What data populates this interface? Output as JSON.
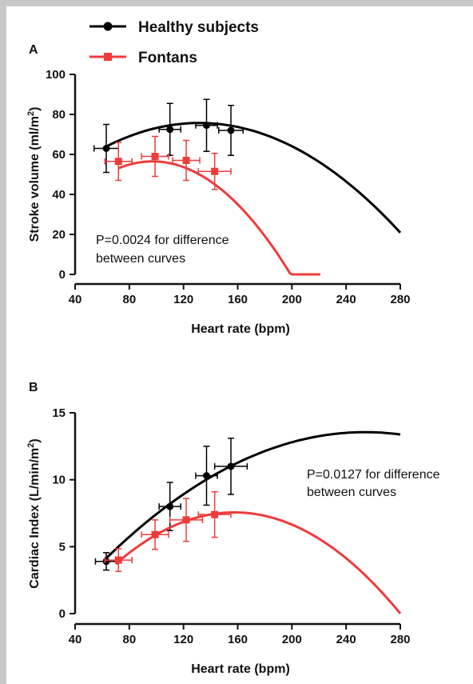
{
  "legend": {
    "items": [
      {
        "label": "Healthy subjects",
        "color": "#000000",
        "marker": "circle"
      },
      {
        "label": "Fontans",
        "color": "#ee3b3b",
        "marker": "square"
      }
    ]
  },
  "chart_data": [
    {
      "type": "line",
      "panel_label": "A",
      "xlabel": "Heart rate (bpm)",
      "ylabel_main": "Stroke volume (ml/m",
      "ylabel_sup": "2",
      "ylabel_end": ")",
      "xlim": [
        40,
        280
      ],
      "ylim": [
        0,
        100
      ],
      "xticks": [
        "40",
        "80",
        "120",
        "160",
        "200",
        "240",
        "280"
      ],
      "yticks": [
        "0",
        "20",
        "40",
        "60",
        "80",
        "100"
      ],
      "annotation": [
        "P=0.0024 for difference",
        "between curves"
      ],
      "series": [
        {
          "name": "Healthy subjects",
          "color": "#000000",
          "marker": "circle",
          "points": [
            {
              "x": 63,
              "y": 63,
              "xerr": 9,
              "yerr": 12
            },
            {
              "x": 110,
              "y": 72.5,
              "xerr": 8,
              "yerr": 13
            },
            {
              "x": 137,
              "y": 74.5,
              "xerr": 8,
              "yerr": 13
            },
            {
              "x": 155,
              "y": 72,
              "xerr": 9,
              "yerr": 12.5
            }
          ],
          "curve": {
            "x_start": 62,
            "x_end": 280,
            "coef": [
              32.46,
              0.6569,
              -0.002494
            ]
          }
        },
        {
          "name": "Fontans",
          "color": "#ee3b3b",
          "marker": "square",
          "points": [
            {
              "x": 72,
              "y": 56.5,
              "xerr": 10,
              "yerr": 9.5
            },
            {
              "x": 99,
              "y": 59,
              "xerr": 10,
              "yerr": 10
            },
            {
              "x": 122,
              "y": 57,
              "xerr": 10,
              "yerr": 10
            },
            {
              "x": 143,
              "y": 51.5,
              "xerr": 12,
              "yerr": 9
            }
          ],
          "curve": {
            "x_start": 72,
            "x_end": 221,
            "coef": [
              5.2,
              1.056,
              -0.005435
            ]
          }
        }
      ]
    },
    {
      "type": "line",
      "panel_label": "B",
      "xlabel": "Heart rate (bpm)",
      "ylabel_main": "Cardiac Index (L/min/m",
      "ylabel_sup": "2",
      "ylabel_end": ")",
      "xlim": [
        40,
        280
      ],
      "ylim": [
        0,
        15
      ],
      "xticks": [
        "40",
        "80",
        "120",
        "160",
        "200",
        "240",
        "280"
      ],
      "yticks": [
        "0",
        "5",
        "10",
        "15"
      ],
      "annotation": [
        "P=0.0127 for difference",
        "between curves"
      ],
      "series": [
        {
          "name": "Healthy subjects",
          "color": "#000000",
          "marker": "circle",
          "points": [
            {
              "x": 63,
              "y": 3.9,
              "xerr": 8,
              "yerr": 0.65
            },
            {
              "x": 110,
              "y": 8.0,
              "xerr": 8,
              "yerr": 1.8
            },
            {
              "x": 137,
              "y": 10.3,
              "xerr": 8,
              "yerr": 2.2
            },
            {
              "x": 155,
              "y": 11.0,
              "xerr": 12,
              "yerr": 2.1
            }
          ],
          "curve": {
            "x_start": 62,
            "x_end": 280,
            "coef": [
              -3.1,
              0.1311,
              -0.000258
            ]
          }
        },
        {
          "name": "Fontans",
          "color": "#ee3b3b",
          "marker": "square",
          "points": [
            {
              "x": 72,
              "y": 4.0,
              "xerr": 10,
              "yerr": 0.85
            },
            {
              "x": 99,
              "y": 5.9,
              "xerr": 10,
              "yerr": 1.1
            },
            {
              "x": 122,
              "y": 7.0,
              "xerr": 12,
              "yerr": 1.6
            },
            {
              "x": 143,
              "y": 7.4,
              "xerr": 12,
              "yerr": 1.7
            }
          ],
          "curve": {
            "x_start": 70,
            "x_end": 280,
            "coef": [
              -4.91,
              0.1584,
              -0.000503
            ]
          }
        }
      ]
    }
  ]
}
